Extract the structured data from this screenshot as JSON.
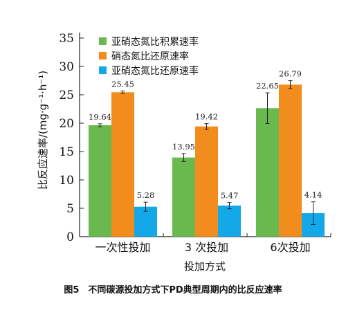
{
  "chart_data": {
    "type": "bar",
    "categories": [
      "一次性投加",
      "3 次投加",
      "6次投加"
    ],
    "series": [
      {
        "name": "亚硝态氮比积累速率",
        "color": "#6ab94e",
        "values": [
          19.64,
          13.95,
          22.65
        ],
        "errors": [
          0.25,
          0.7,
          2.7
        ],
        "labels": [
          "19.64",
          "13.95",
          "22.65"
        ]
      },
      {
        "name": "硝态氮比还原速率",
        "color": "#f28c1c",
        "values": [
          25.45,
          19.42,
          26.79
        ],
        "errors": [
          0.2,
          0.5,
          0.7
        ],
        "labels": [
          "25.45",
          "19.42",
          "26.79"
        ]
      },
      {
        "name": "亚硝态氮比还原速率",
        "color": "#13a9e8",
        "values": [
          5.28,
          5.47,
          4.14
        ],
        "errors": [
          0.8,
          0.55,
          2.0
        ],
        "labels": [
          "5.28",
          "5.47",
          "4.14"
        ]
      }
    ],
    "xlabel": "投加方式",
    "ylabel": "比反应速率/(mg·g⁻¹·h⁻¹)",
    "ylim": [
      0,
      35
    ],
    "yticks": [
      0,
      5,
      10,
      15,
      20,
      25,
      30,
      35
    ],
    "legend_position": "top-left",
    "grid": false
  },
  "caption": "图5　不同碳源投加方式下PD典型周期内的比反应速率"
}
